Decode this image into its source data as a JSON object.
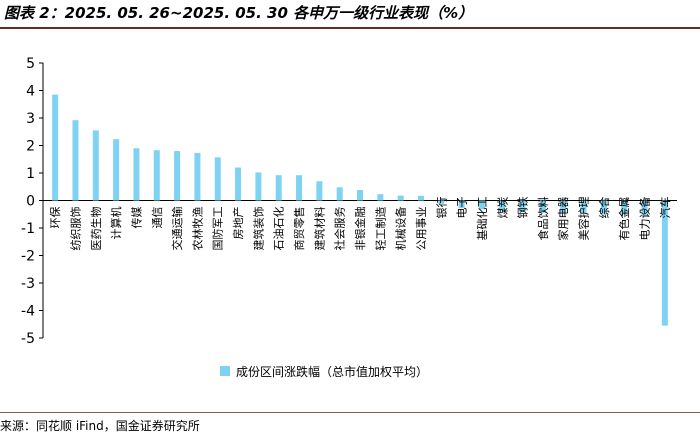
{
  "figure": {
    "title": "图表 2：2025. 05. 26~2025. 05. 30 各申万一级行业表现（%）",
    "source": "来源：同花顺 iFind，国金证券研究所"
  },
  "colors": {
    "bar": "#7fd3f2",
    "axis": "#000000"
  },
  "chart_data": {
    "type": "bar",
    "title": "",
    "xlabel": "",
    "ylabel": "",
    "ylim": [
      -5,
      5
    ],
    "y_ticks": [
      5,
      4,
      3,
      2,
      1,
      0,
      -1,
      -2,
      -3,
      -4,
      -5
    ],
    "grid": false,
    "legend": {
      "position": "bottom",
      "entries": [
        "成份区间涨跌幅（总市值加权平均）"
      ]
    },
    "categories": [
      "环保",
      "纺织服饰",
      "医药生物",
      "计算机",
      "传媒",
      "通信",
      "交通运输",
      "农林牧渔",
      "国防军工",
      "房地产",
      "建筑装饰",
      "石油石化",
      "商贸零售",
      "建筑材料",
      "社会服务",
      "非银金融",
      "轻工制造",
      "机械设备",
      "公用事业",
      "银行",
      "电子",
      "基础化工",
      "煤炭",
      "钢铁",
      "食品饮料",
      "家用电器",
      "美容护理",
      "综合",
      "有色金属",
      "电力设备",
      "汽车"
    ],
    "series": [
      {
        "name": "成份区间涨跌幅（总市值加权平均）",
        "values": [
          3.85,
          2.92,
          2.55,
          2.23,
          1.9,
          1.83,
          1.8,
          1.73,
          1.57,
          1.2,
          1.02,
          0.92,
          0.92,
          0.7,
          0.48,
          0.38,
          0.23,
          0.18,
          0.17,
          -0.12,
          -0.28,
          -0.32,
          -0.38,
          -0.42,
          -0.45,
          -0.45,
          -0.45,
          -0.5,
          -0.52,
          -0.58,
          -4.55
        ]
      }
    ]
  }
}
